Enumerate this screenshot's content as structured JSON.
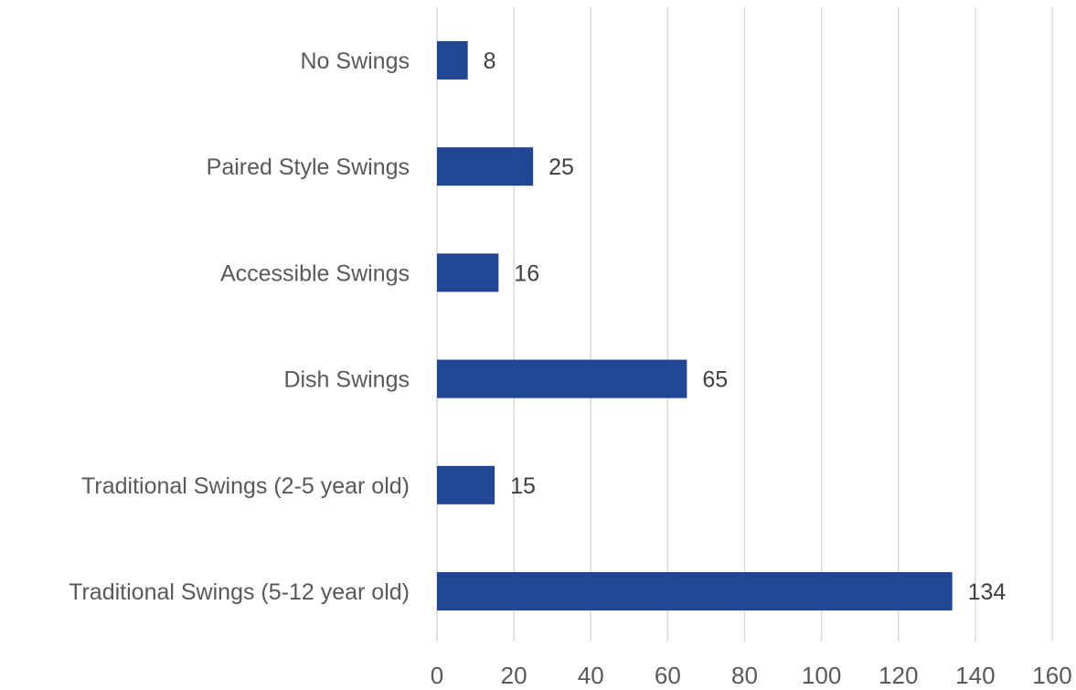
{
  "chart_data": {
    "type": "bar",
    "orientation": "horizontal",
    "categories": [
      "No Swings",
      "Paired Style Swings",
      "Accessible Swings",
      "Dish Swings",
      "Traditional Swings (2-5 year old)",
      "Traditional Swings (5-12 year old)"
    ],
    "values": [
      8,
      25,
      16,
      65,
      15,
      134
    ],
    "data_labels": [
      "8",
      "25",
      "16",
      "65",
      "15",
      "134"
    ],
    "xlim": [
      0,
      160
    ],
    "x_ticks": [
      0,
      20,
      40,
      60,
      80,
      100,
      120,
      140,
      160
    ],
    "x_tick_labels": [
      "0",
      "20",
      "40",
      "60",
      "80",
      "100",
      "120",
      "140",
      "160"
    ],
    "title": "",
    "xlabel": "",
    "ylabel": "",
    "grid": "vertical",
    "legend": "none",
    "colors": {
      "bar": "#214694",
      "grid": "#d9d9d9"
    }
  }
}
